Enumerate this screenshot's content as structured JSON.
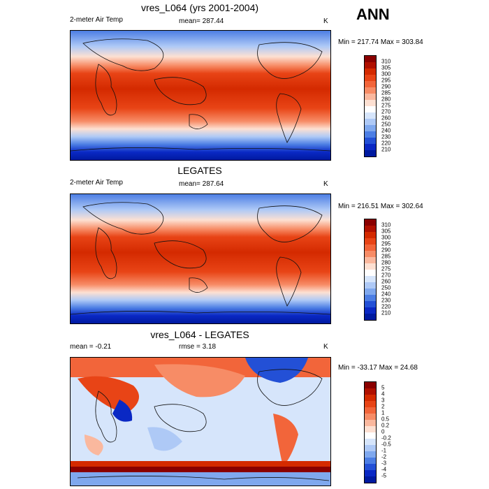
{
  "corner_label": "ANN",
  "panels": [
    {
      "title": "vres_L064 (yrs 2001-2004)",
      "left_label": "2-meter Air Temp",
      "center_label": "mean= 287.44",
      "right_label": "K",
      "minmax": "Min = 217.74 Max = 303.84",
      "colorbar": {
        "labels": [
          "310",
          "305",
          "300",
          "295",
          "290",
          "285",
          "280",
          "275",
          "270",
          "260",
          "250",
          "240",
          "230",
          "220",
          "210"
        ],
        "colors": [
          "#8a0000",
          "#b01000",
          "#d42a00",
          "#e84416",
          "#f2653a",
          "#f78c66",
          "#fab89e",
          "#fde0d2",
          "#ffffff",
          "#d6e5fb",
          "#aec9f6",
          "#7fa8ee",
          "#4c7ee4",
          "#2350d6",
          "#0a28c4",
          "#001aa0"
        ]
      }
    },
    {
      "title": "LEGATES",
      "left_label": "2-meter Air Temp",
      "center_label": "mean= 287.64",
      "right_label": "K",
      "minmax": "Min = 216.51 Max = 302.64",
      "colorbar": {
        "labels": [
          "310",
          "305",
          "300",
          "295",
          "290",
          "285",
          "280",
          "275",
          "270",
          "260",
          "250",
          "240",
          "230",
          "220",
          "210"
        ],
        "colors": [
          "#8a0000",
          "#b01000",
          "#d42a00",
          "#e84416",
          "#f2653a",
          "#f78c66",
          "#fab89e",
          "#fde0d2",
          "#ffffff",
          "#d6e5fb",
          "#aec9f6",
          "#7fa8ee",
          "#4c7ee4",
          "#2350d6",
          "#0a28c4",
          "#001aa0"
        ]
      }
    },
    {
      "title": "vres_L064 - LEGATES",
      "left_label": "mean =  -0.21",
      "center_label": "rmse =   3.18",
      "right_label": "K",
      "minmax": "Min = -33.17 Max =  24.68",
      "colorbar": {
        "labels": [
          "5",
          "4",
          "3",
          "2",
          "1",
          "0.5",
          "0.2",
          "0",
          "-0.2",
          "-0.5",
          "-1",
          "-2",
          "-3",
          "-4",
          "-5"
        ],
        "colors": [
          "#8a0000",
          "#b01000",
          "#d42a00",
          "#e84416",
          "#f2653a",
          "#f78c66",
          "#fab89e",
          "#fde0d2",
          "#ffffff",
          "#d6e5fb",
          "#aec9f6",
          "#7fa8ee",
          "#4c7ee4",
          "#2350d6",
          "#0a28c4",
          "#001aa0"
        ]
      }
    }
  ]
}
